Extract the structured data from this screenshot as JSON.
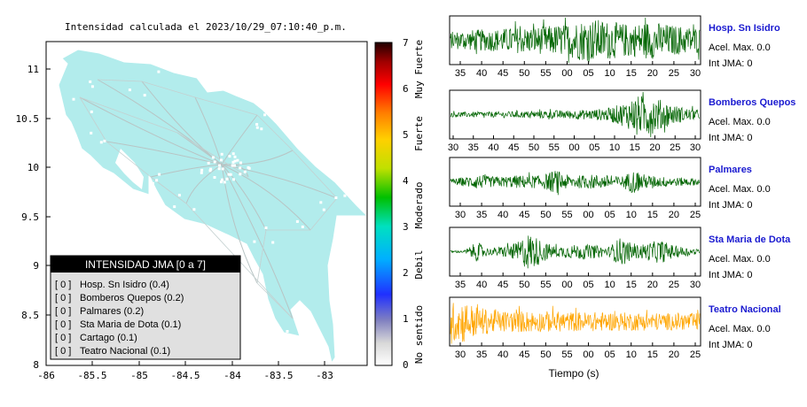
{
  "map": {
    "title": "Intensidad calculada el 2023/10/29_07:10:40_p.m.",
    "x_ticks": [
      "-86",
      "-85.5",
      "-85",
      "-84.5",
      "-84",
      "-83.5",
      "-83"
    ],
    "y_ticks": [
      "11",
      "10.5",
      "10",
      "9.5",
      "9",
      "8.5",
      "8"
    ],
    "xlim": [
      -86,
      -82.7
    ],
    "ylim": [
      8,
      11.3
    ],
    "land_color": "#b2ecec",
    "legend": {
      "header": "INTENSIDAD JMA [0 a 7]",
      "items": [
        {
          "level": "[ 0 ]",
          "label": "Hosp. Sn Isidro (0.4)"
        },
        {
          "level": "[ 0 ]",
          "label": "Bomberos Quepos (0.2)"
        },
        {
          "level": "[ 0 ]",
          "label": "Palmares (0.2)"
        },
        {
          "level": "[ 0 ]",
          "label": "Sta Maria de Dota (0.1)"
        },
        {
          "level": "[ 0 ]",
          "label": "Cartago (0.1)"
        },
        {
          "level": "[ 0 ]",
          "label": "Teatro Nacional (0.1)"
        }
      ]
    }
  },
  "colorbar": {
    "ticks": [
      "7",
      "6",
      "5",
      "4",
      "3",
      "2",
      "1",
      "0"
    ],
    "range": [
      0,
      7
    ],
    "categories": [
      "Muy Fuerte",
      "Fuerte",
      "Moderado",
      "Debil",
      "No sentido"
    ]
  },
  "chart_data": [
    {
      "type": "line",
      "name": "Hosp. Sn Isidro",
      "color": "#006400",
      "x_ticks": [
        "35",
        "40",
        "45",
        "50",
        "55",
        "00",
        "05",
        "10",
        "15",
        "20",
        "25",
        "30"
      ],
      "amplitude_profile": [
        0.4,
        0.45,
        0.5,
        0.5,
        0.55,
        0.6,
        0.6,
        0.65,
        0.7,
        0.8,
        0.95,
        1.0,
        0.9,
        0.8,
        0.75,
        0.9,
        0.8,
        0.7,
        0.65,
        0.6
      ],
      "acel_max": "Acel. Max. 0.0",
      "int_jma": "Int JMA: 0"
    },
    {
      "type": "line",
      "name": "Bomberos Quepos",
      "color": "#006400",
      "x_ticks": [
        "30",
        "35",
        "40",
        "45",
        "50",
        "55",
        "00",
        "05",
        "10",
        "15",
        "20",
        "25",
        "30"
      ],
      "amplitude_profile": [
        0.12,
        0.12,
        0.13,
        0.13,
        0.14,
        0.15,
        0.16,
        0.18,
        0.2,
        0.2,
        0.22,
        0.25,
        0.3,
        0.5,
        0.8,
        1.0,
        0.7,
        0.45,
        0.3,
        0.2
      ],
      "acel_max": "Acel. Max. 0.0",
      "int_jma": "Int JMA: 0"
    },
    {
      "type": "line",
      "name": "Palmares",
      "color": "#006400",
      "x_ticks": [
        "30",
        "35",
        "40",
        "45",
        "50",
        "55",
        "00",
        "05",
        "10",
        "15",
        "20",
        "25"
      ],
      "amplitude_profile": [
        0.15,
        0.2,
        0.35,
        0.25,
        0.25,
        0.3,
        0.3,
        0.3,
        0.55,
        0.3,
        0.3,
        0.35,
        0.3,
        0.25,
        0.55,
        0.3,
        0.25,
        0.2,
        0.2,
        0.15
      ],
      "acel_max": "Acel. Max. 0.0",
      "int_jma": "Int JMA: 0"
    },
    {
      "type": "line",
      "name": "Sta Maria de Dota",
      "color": "#006400",
      "x_ticks": [
        "35",
        "40",
        "45",
        "50",
        "55",
        "00",
        "05",
        "10",
        "15",
        "20",
        "25",
        "30"
      ],
      "amplitude_profile": [
        0.05,
        0.05,
        0.45,
        0.15,
        0.25,
        0.4,
        0.9,
        0.5,
        0.25,
        0.3,
        0.35,
        0.3,
        0.2,
        0.7,
        0.3,
        0.4,
        0.55,
        0.3,
        0.2,
        0.1
      ],
      "acel_max": "Acel. Max. 0.0",
      "int_jma": "Int JMA: 0"
    },
    {
      "type": "line",
      "name": "Teatro Nacional",
      "color": "#ffa500",
      "x_ticks": [
        "30",
        "35",
        "40",
        "45",
        "50",
        "55",
        "00",
        "05",
        "10",
        "15",
        "20",
        "25"
      ],
      "xlabel": "Tiempo (s)",
      "amplitude_profile": [
        0.9,
        1.0,
        0.7,
        0.55,
        0.5,
        0.5,
        0.5,
        0.48,
        0.48,
        0.45,
        0.45,
        0.45,
        0.43,
        0.43,
        0.42,
        0.42,
        0.4,
        0.4,
        0.4,
        0.4
      ],
      "acel_max": "Acel. Max. 0.0",
      "int_jma": "Int JMA: 0"
    }
  ]
}
